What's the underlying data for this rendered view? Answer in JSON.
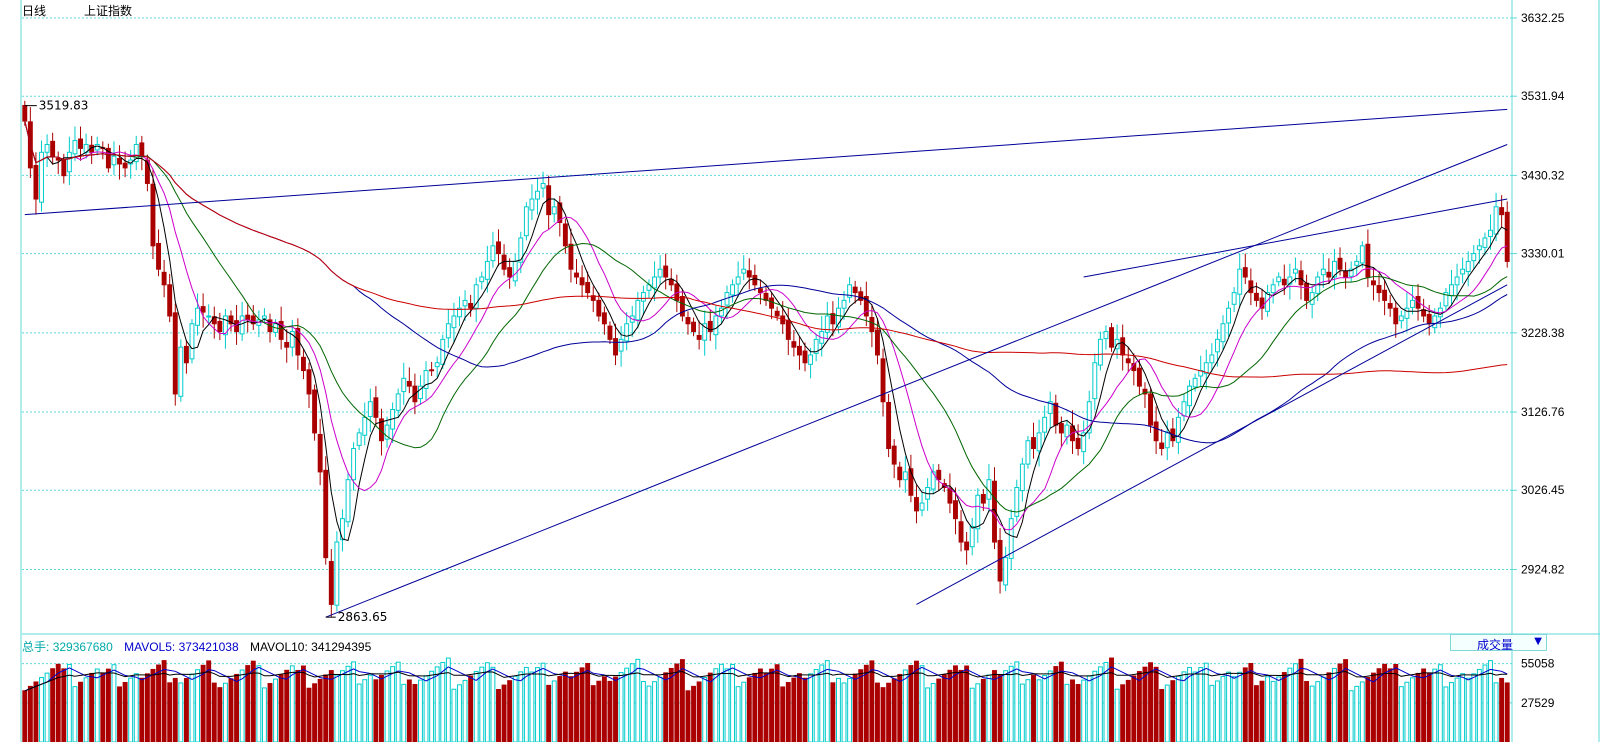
{
  "header": {
    "period": "日线",
    "index_name": "上证指数"
  },
  "volume_info": {
    "total_label": "总手:",
    "total_value": "329367680",
    "mavol5_label": "MAVOL5:",
    "mavol5_value": "373421038",
    "mavol10_label": "MAVOL10:",
    "mavol10_value": "341294395",
    "selector_label": "成交量"
  },
  "colors": {
    "up": "#00cccc",
    "down": "#aa0000",
    "grid": "#5fd8d8",
    "ma5": "#000000",
    "ma10": "#cc00cc",
    "ma20": "#006600",
    "ma60": "#000099",
    "ma120": "#cc0000",
    "trend": "#000099"
  },
  "chart_data": {
    "type": "candlestick",
    "y_ticks": [
      "3632.25",
      "3531.94",
      "3430.32",
      "3330.01",
      "3228.38",
      "3126.76",
      "3026.45",
      "2924.82"
    ],
    "y_tick_values": [
      3632.25,
      3531.94,
      3430.32,
      3330.01,
      3228.38,
      3126.76,
      3026.45,
      2924.82
    ],
    "ylim": [
      2860,
      3632.25
    ],
    "annotations": {
      "high": {
        "label": "3519.83",
        "value": 3519.83,
        "bar": 0
      },
      "low": {
        "label": "2863.65",
        "value": 2863.65,
        "bar": 54
      }
    },
    "volume_ticks": [
      "55058",
      "27529"
    ],
    "volume_tick_values": [
      55058,
      27529
    ],
    "closes": [
      3500,
      3440,
      3400,
      3460,
      3470,
      3455,
      3450,
      3430,
      3460,
      3475,
      3465,
      3470,
      3460,
      3470,
      3465,
      3440,
      3455,
      3445,
      3440,
      3450,
      3470,
      3455,
      3420,
      3340,
      3310,
      3290,
      3250,
      3150,
      3210,
      3190,
      3240,
      3260,
      3255,
      3250,
      3240,
      3230,
      3250,
      3240,
      3230,
      3250,
      3245,
      3240,
      3245,
      3250,
      3230,
      3240,
      3220,
      3210,
      3230,
      3200,
      3180,
      3150,
      3100,
      3050,
      2940,
      2880,
      2960,
      2990,
      3040,
      3080,
      3100,
      3120,
      3140,
      3120,
      3090,
      3110,
      3130,
      3150,
      3170,
      3160,
      3140,
      3160,
      3180,
      3180,
      3190,
      3220,
      3240,
      3250,
      3260,
      3270,
      3260,
      3290,
      3300,
      3320,
      3340,
      3330,
      3310,
      3300,
      3320,
      3350,
      3390,
      3400,
      3410,
      3420,
      3380,
      3390,
      3370,
      3340,
      3310,
      3300,
      3290,
      3280,
      3270,
      3250,
      3240,
      3220,
      3200,
      3220,
      3240,
      3250,
      3270,
      3280,
      3290,
      3300,
      3310,
      3300,
      3290,
      3270,
      3250,
      3240,
      3230,
      3220,
      3240,
      3230,
      3250,
      3260,
      3280,
      3290,
      3300,
      3310,
      3300,
      3290,
      3280,
      3270,
      3260,
      3250,
      3240,
      3220,
      3210,
      3200,
      3190,
      3200,
      3220,
      3230,
      3250,
      3240,
      3260,
      3270,
      3290,
      3280,
      3270,
      3250,
      3230,
      3200,
      3140,
      3080,
      3060,
      3040,
      3050,
      3020,
      3000,
      3010,
      3030,
      3050,
      3040,
      3030,
      3010,
      2990,
      2960,
      2950,
      2980,
      3020,
      3010,
      3040,
      2960,
      2910,
      2940,
      2990,
      3030,
      3060,
      3090,
      3080,
      3100,
      3120,
      3140,
      3110,
      3100,
      3110,
      3090,
      3080,
      3100,
      3140,
      3190,
      3220,
      3230,
      3210,
      3220,
      3200,
      3190,
      3180,
      3160,
      3150,
      3110,
      3090,
      3080,
      3100,
      3090,
      3120,
      3140,
      3160,
      3170,
      3180,
      3190,
      3200,
      3220,
      3240,
      3260,
      3280,
      3310,
      3300,
      3280,
      3270,
      3260,
      3280,
      3290,
      3300,
      3290,
      3300,
      3310,
      3290,
      3270,
      3280,
      3300,
      3310,
      3300,
      3320,
      3310,
      3300,
      3310,
      3320,
      3340,
      3300,
      3290,
      3280,
      3270,
      3260,
      3240,
      3250,
      3260,
      3270,
      3260,
      3250,
      3240,
      3250,
      3260,
      3280,
      3290,
      3300,
      3310,
      3320,
      3330,
      3340,
      3350,
      3360,
      3390,
      3380,
      3320
    ]
  }
}
